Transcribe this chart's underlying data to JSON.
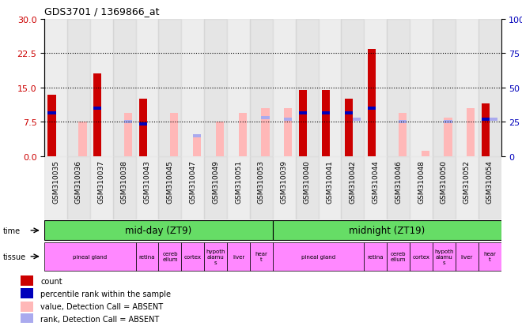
{
  "title": "GDS3701 / 1369866_at",
  "samples": [
    "GSM310035",
    "GSM310036",
    "GSM310037",
    "GSM310038",
    "GSM310043",
    "GSM310045",
    "GSM310047",
    "GSM310049",
    "GSM310051",
    "GSM310053",
    "GSM310039",
    "GSM310040",
    "GSM310041",
    "GSM310042",
    "GSM310044",
    "GSM310046",
    "GSM310048",
    "GSM310050",
    "GSM310052",
    "GSM310054"
  ],
  "count_values": [
    13.5,
    0,
    18.0,
    0,
    12.5,
    0,
    0,
    0,
    0,
    0,
    0,
    14.5,
    14.5,
    12.5,
    23.5,
    0,
    0,
    0,
    0,
    11.5
  ],
  "absent_values": [
    0,
    7.5,
    0,
    9.5,
    0,
    9.5,
    4.5,
    7.5,
    9.5,
    10.5,
    10.5,
    0,
    0,
    0,
    0,
    9.5,
    1.2,
    8.5,
    10.5,
    0
  ],
  "perc_present": [
    9.5,
    0,
    10.5,
    0,
    7.0,
    0,
    0,
    0,
    0,
    0,
    0,
    9.5,
    9.5,
    9.5,
    10.5,
    0,
    0,
    0,
    0,
    8.0
  ],
  "perc_absent": [
    0,
    0,
    0,
    7.5,
    0,
    0,
    4.5,
    0,
    0,
    8.5,
    8.0,
    0,
    0,
    8.0,
    0,
    7.5,
    0,
    7.5,
    0,
    8.0
  ],
  "ylim_left": [
    0,
    30
  ],
  "ylim_right": [
    0,
    100
  ],
  "yticks_left": [
    0,
    7.5,
    15,
    22.5,
    30
  ],
  "yticks_right": [
    0,
    25,
    50,
    75,
    100
  ],
  "dotted_lines": [
    7.5,
    15,
    22.5
  ],
  "color_red": "#CC0000",
  "color_pink": "#FFB8B8",
  "color_blue_dark": "#0000BB",
  "color_blue_light": "#AAAAEE",
  "bg_gray_light": "#DDDDDD",
  "bg_gray_dark": "#CCCCCC",
  "time_color": "#66DD66",
  "tissue_color": "#FF88FF",
  "tissue_groups_first": [
    {
      "label": "pineal gland",
      "start": 0,
      "end": 4
    },
    {
      "label": "retina",
      "start": 4,
      "end": 5
    },
    {
      "label": "cereb\nellum",
      "start": 5,
      "end": 6
    },
    {
      "label": "cortex",
      "start": 6,
      "end": 7
    },
    {
      "label": "hypoth\nalamu\ns",
      "start": 7,
      "end": 8
    },
    {
      "label": "liver",
      "start": 8,
      "end": 9
    },
    {
      "label": "hear\nt",
      "start": 9,
      "end": 10
    }
  ],
  "tissue_groups_second": [
    {
      "label": "pineal gland",
      "start": 10,
      "end": 14
    },
    {
      "label": "retina",
      "start": 14,
      "end": 15
    },
    {
      "label": "cereb\nellum",
      "start": 15,
      "end": 16
    },
    {
      "label": "cortex",
      "start": 16,
      "end": 17
    },
    {
      "label": "hypoth\nalamu\ns",
      "start": 17,
      "end": 18
    },
    {
      "label": "liver",
      "start": 18,
      "end": 19
    },
    {
      "label": "hear\nt",
      "start": 19,
      "end": 20
    }
  ],
  "legend_items": [
    {
      "label": "count",
      "color": "#CC0000"
    },
    {
      "label": "percentile rank within the sample",
      "color": "#0000BB"
    },
    {
      "label": "value, Detection Call = ABSENT",
      "color": "#FFB8B8"
    },
    {
      "label": "rank, Detection Call = ABSENT",
      "color": "#AAAAEE"
    }
  ]
}
